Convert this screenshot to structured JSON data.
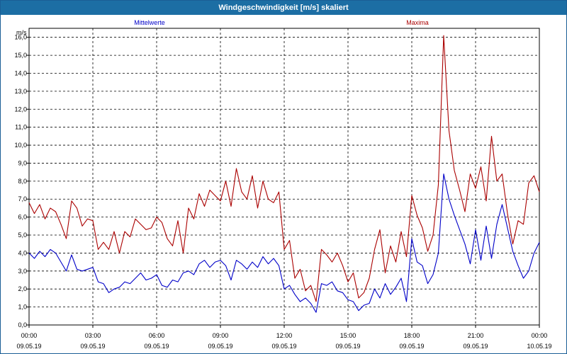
{
  "window": {
    "title": "Windgeschwindigkeit [m/s] skaliert"
  },
  "chart_data": {
    "type": "line",
    "title": "Windgeschwindigkeit [m/s] skaliert",
    "ylabel": "m/s",
    "ylim": [
      0,
      16.5
    ],
    "yticks": [
      0.0,
      1.0,
      2.0,
      3.0,
      4.0,
      5.0,
      6.0,
      7.0,
      8.0,
      9.0,
      10.0,
      11.0,
      12.0,
      13.0,
      14.0,
      15.0,
      16.0
    ],
    "ytick_labels": [
      "0,0",
      "1,0",
      "2,0",
      "3,0",
      "4,0",
      "5,0",
      "6,0",
      "7,0",
      "8,0",
      "9,0",
      "10,0",
      "11,0",
      "12,0",
      "13,0",
      "14,0",
      "15,0",
      "16,0"
    ],
    "x_ticks": [
      {
        "time": "00:00",
        "date": "09.05.19"
      },
      {
        "time": "03:00",
        "date": "09.05.19"
      },
      {
        "time": "06:00",
        "date": "09.05.19"
      },
      {
        "time": "09:00",
        "date": "09.05.19"
      },
      {
        "time": "12:00",
        "date": "09.05.19"
      },
      {
        "time": "15:00",
        "date": "09.05.19"
      },
      {
        "time": "18:00",
        "date": "09.05.19"
      },
      {
        "time": "21:00",
        "date": "09.05.19"
      },
      {
        "time": "00:00",
        "date": "10.05.19"
      }
    ],
    "xlim": [
      "09.05.19 00:00",
      "10.05.19 00:00"
    ],
    "x_unit": "hours since 09.05.19 00:00",
    "grid": true,
    "series": [
      {
        "name": "Mittelwerte",
        "color": "#0000c8",
        "x": [
          0,
          0.25,
          0.5,
          0.75,
          1.0,
          1.25,
          1.5,
          1.75,
          2.0,
          2.25,
          2.5,
          2.75,
          3.0,
          3.25,
          3.5,
          3.75,
          4.0,
          4.25,
          4.5,
          4.75,
          5.0,
          5.25,
          5.5,
          5.75,
          6.0,
          6.25,
          6.5,
          6.75,
          7.0,
          7.25,
          7.5,
          7.75,
          8.0,
          8.25,
          8.5,
          8.75,
          9.0,
          9.25,
          9.5,
          9.75,
          10.0,
          10.25,
          10.5,
          10.75,
          11.0,
          11.25,
          11.5,
          11.75,
          12.0,
          12.25,
          12.5,
          12.75,
          13.0,
          13.25,
          13.5,
          13.75,
          14.0,
          14.25,
          14.5,
          14.75,
          15.0,
          15.25,
          15.5,
          15.75,
          16.0,
          16.25,
          16.5,
          16.75,
          17.0,
          17.25,
          17.5,
          17.75,
          18.0,
          18.25,
          18.5,
          18.75,
          19.0,
          19.25,
          19.5,
          19.75,
          20.0,
          20.25,
          20.5,
          20.75,
          21.0,
          21.25,
          21.5,
          21.75,
          22.0,
          22.25,
          22.5,
          22.75,
          23.0,
          23.25,
          23.5,
          23.75,
          24.0
        ],
        "values": [
          4.0,
          3.7,
          4.1,
          3.8,
          4.2,
          4.0,
          3.5,
          3.0,
          3.9,
          3.1,
          3.0,
          3.1,
          3.2,
          2.4,
          2.3,
          1.8,
          2.0,
          2.1,
          2.4,
          2.3,
          2.6,
          2.9,
          2.5,
          2.6,
          2.8,
          2.2,
          2.1,
          2.5,
          2.4,
          2.9,
          3.0,
          2.8,
          3.4,
          3.6,
          3.2,
          3.5,
          3.6,
          3.3,
          2.5,
          3.6,
          3.4,
          3.1,
          3.5,
          3.2,
          3.8,
          3.4,
          3.7,
          3.3,
          2.0,
          2.2,
          1.7,
          1.3,
          1.5,
          1.2,
          0.7,
          2.3,
          2.2,
          2.4,
          1.9,
          1.8,
          1.4,
          1.3,
          0.8,
          1.1,
          1.2,
          2.0,
          1.5,
          2.3,
          1.7,
          2.1,
          2.6,
          1.3,
          4.8,
          3.5,
          3.3,
          2.3,
          2.8,
          4.0,
          8.4,
          7.0,
          6.1,
          5.3,
          4.5,
          3.4,
          5.3,
          3.6,
          5.5,
          3.7,
          5.6,
          6.7,
          5.4,
          4.1,
          3.3,
          2.6,
          3.0,
          4.0,
          4.6
        ]
      },
      {
        "name": "Maxima",
        "color": "#aa0000",
        "x": [
          0,
          0.25,
          0.5,
          0.75,
          1.0,
          1.25,
          1.5,
          1.75,
          2.0,
          2.25,
          2.5,
          2.75,
          3.0,
          3.25,
          3.5,
          3.75,
          4.0,
          4.25,
          4.5,
          4.75,
          5.0,
          5.25,
          5.5,
          5.75,
          6.0,
          6.25,
          6.5,
          6.75,
          7.0,
          7.25,
          7.5,
          7.75,
          8.0,
          8.25,
          8.5,
          8.75,
          9.0,
          9.25,
          9.5,
          9.75,
          10.0,
          10.25,
          10.5,
          10.75,
          11.0,
          11.25,
          11.5,
          11.75,
          12.0,
          12.25,
          12.5,
          12.75,
          13.0,
          13.25,
          13.5,
          13.75,
          14.0,
          14.25,
          14.5,
          14.75,
          15.0,
          15.25,
          15.5,
          15.75,
          16.0,
          16.25,
          16.5,
          16.75,
          17.0,
          17.25,
          17.5,
          17.75,
          18.0,
          18.25,
          18.5,
          18.75,
          19.0,
          19.25,
          19.5,
          19.75,
          20.0,
          20.25,
          20.5,
          20.75,
          21.0,
          21.25,
          21.5,
          21.75,
          22.0,
          22.25,
          22.5,
          22.75,
          23.0,
          23.25,
          23.5,
          23.75,
          24.0
        ],
        "values": [
          6.8,
          6.2,
          6.7,
          5.9,
          6.5,
          6.3,
          5.6,
          4.8,
          6.9,
          6.5,
          5.5,
          5.9,
          5.8,
          4.2,
          4.6,
          4.2,
          5.2,
          4.0,
          5.2,
          4.9,
          5.9,
          5.6,
          5.3,
          5.4,
          6.0,
          5.7,
          4.8,
          4.4,
          5.8,
          4.0,
          6.5,
          5.9,
          7.3,
          6.6,
          7.5,
          7.2,
          6.9,
          8.0,
          6.6,
          8.7,
          7.4,
          7.0,
          8.3,
          6.5,
          8.0,
          7.0,
          6.8,
          7.4,
          4.2,
          4.7,
          2.6,
          3.1,
          1.9,
          2.2,
          1.3,
          4.2,
          3.9,
          3.5,
          4.0,
          3.3,
          2.4,
          2.9,
          1.5,
          1.8,
          2.6,
          4.2,
          5.3,
          2.9,
          4.4,
          3.5,
          5.2,
          3.8,
          7.2,
          6.1,
          5.4,
          4.1,
          5.0,
          7.8,
          16.1,
          10.8,
          8.6,
          7.5,
          6.3,
          8.4,
          7.6,
          8.8,
          6.9,
          10.5,
          8.0,
          8.4,
          6.2,
          4.5,
          5.8,
          5.6,
          7.9,
          8.3,
          7.4
        ]
      }
    ]
  }
}
